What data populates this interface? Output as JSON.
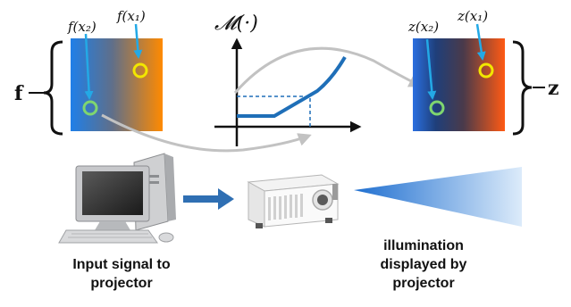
{
  "input_map": {
    "symbol": "f",
    "label_x1": "f(x₁)",
    "label_x2": "f(x₂)"
  },
  "output_map": {
    "symbol": "z",
    "label_x1": "z(x₁)",
    "label_x2": "z(x₂)"
  },
  "transfer_function": {
    "label": "𝓜(·)"
  },
  "captions": {
    "input_signal": "Input signal to projector",
    "illumination": "illumination displayed by projector"
  },
  "colors": {
    "accent_blue": "#1f6fb8",
    "arrow_gray": "#c2c2c2",
    "marker_yellow": "#f2e600",
    "marker_green": "#7fd66f",
    "pointer_cyan": "#23a9e6"
  },
  "icons": [
    "computer-icon",
    "projector-icon",
    "light-beam-icon"
  ]
}
